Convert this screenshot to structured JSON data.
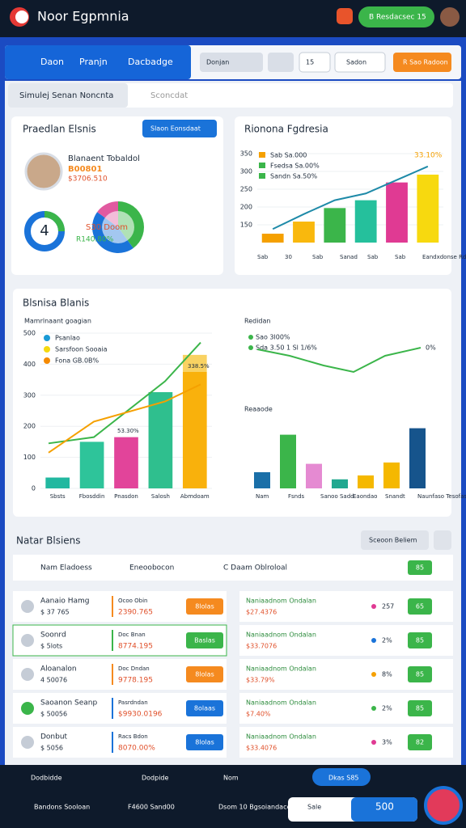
{
  "header": {
    "title": "Noor Egpmnia",
    "button": "B Resdacsec 15"
  },
  "nav": {
    "tabs": [
      "Daon",
      "Pranjn",
      "Dacbadge"
    ],
    "dropdowns": [
      "Donjan",
      "15",
      "Sadon"
    ],
    "action": "R Sao Radoon"
  },
  "search": {
    "tab": "Simulej Senan Noncnta",
    "placeholder": "Sconcdat"
  },
  "profile": {
    "title": "Praedlan Elsnis",
    "button": "Slaon Eonsdaat",
    "name": "Blanaent Tobaldol",
    "line1": "B00801",
    "line2": "$3706.510",
    "ring": "4",
    "donut_label": "S30 Doom",
    "donut_sub": "R140.80%",
    "segments": [
      40,
      45,
      15
    ],
    "colors": [
      "#3bb54a",
      "#1a73d9",
      "#e15aa0"
    ]
  },
  "revenue": {
    "title": "Rionona Fgdresia",
    "legend": [
      "Sab Sa.000",
      "Fsedsa Sa.00%",
      "Sandn Sa.50%"
    ],
    "legend_colors": [
      "#f5a000",
      "#3bb54a",
      "#3bb54a"
    ],
    "top_label": "33.10%",
    "ylim": [
      100,
      350
    ],
    "yticks": [
      150,
      200,
      250,
      300,
      350
    ],
    "bars": [
      125,
      159,
      197,
      219,
      269,
      291
    ],
    "bar_colors": [
      "#f5a000",
      "#f9b80d",
      "#3bb54a",
      "#25c09c",
      "#e03a93",
      "#f7d90f"
    ],
    "line": [
      138,
      180,
      219,
      238,
      276,
      314
    ],
    "line_color": "#1e8aa8",
    "xlabels": [
      "Sab",
      "30",
      "Sab",
      "Sanad",
      "Sab",
      "Sab",
      "Eandxdonse Rdmmotzi"
    ]
  },
  "business": {
    "title": "Blsnisa Blanis",
    "subtitle": "Mamrlnaant goagian",
    "legend": [
      "Psanlao",
      "Sarsfoon Sooaia",
      "Fona GB.0B%"
    ],
    "legend_colors": [
      "#1a9ad6",
      "#f5d90f",
      "#f58a00"
    ],
    "ylim": [
      0,
      500
    ],
    "yticks": [
      0,
      100,
      200,
      300,
      400,
      500
    ],
    "bars": [
      35,
      150,
      165,
      310,
      375
    ],
    "bar_colors": [
      "#22b8a0",
      "#2ec49a",
      "#e2449a",
      "#2fbf8e",
      "#f9b10c"
    ],
    "cap": 430,
    "cap_label": "338.5%",
    "pink_label": "53.30%",
    "line1": [
      145,
      165,
      345,
      470
    ],
    "line2": [
      115,
      215,
      280,
      335
    ],
    "xlabels": [
      "Sbsts",
      "Fbosddin",
      "Pnasdon",
      "Salosh",
      "Abmdoam"
    ],
    "right_title": "Redidan",
    "right_legend": [
      "Sao 3l00%",
      "Sda 3.50 1 Sl 1/6%"
    ],
    "right_end": "0%",
    "right_line": [
      70,
      50,
      20,
      0,
      50,
      75
    ],
    "right_ylim": [
      0,
      100
    ],
    "right_sub": "Reaaode",
    "right_bars": [
      25,
      83,
      38,
      14,
      20,
      40,
      93
    ],
    "right_bar_colors": [
      "#1a6fa8",
      "#3bb54a",
      "#e58ad2",
      "#21a890",
      "#f5b800",
      "#f5b800",
      "#16548c"
    ],
    "right_xlabels": [
      "Nam",
      "Fsnds",
      "Sanoo Sadd",
      "Eaondao",
      "Snandt",
      "Naunfaso Tesofasa"
    ]
  },
  "table": {
    "title": "Natar Blsiens",
    "button": "Sceoon Beliem",
    "header": [
      "Nam Eladoess",
      "Eneoobocon",
      "C Daam Oblroloal",
      "85"
    ],
    "rows": [
      [
        "Aanaio Hamg",
        "$ 37 765",
        "Ocoo Obin",
        "2390.765",
        "8lolas",
        "Naniaadnom Ondalan",
        "$27.4376",
        "257",
        "65"
      ],
      [
        "Soonrd",
        "$ 5lots",
        "Doc Bnan",
        "8774.195",
        "Baslas",
        "Naniaadnom Ondalan",
        "$33.7076",
        "2%",
        "85"
      ],
      [
        "Aloanalon",
        "4 50076",
        "Doc Dndan",
        "9778.195",
        "8lolas",
        "Naniaadnom Ondalan",
        "$33.79%",
        "8%",
        "85"
      ],
      [
        "Saoanon Seanp",
        "$ 50056",
        "Pasrdndan",
        "$9930.0196",
        "8olaas",
        "Naniaadnom Ondalan",
        "$7.40%",
        "2%",
        "85"
      ],
      [
        "Donbut",
        "$ 5056",
        "Racs Bdon",
        "8070.00%",
        "8lolas",
        "Naniaadnom Ondalan",
        "$33.4076",
        "3%",
        "82"
      ]
    ]
  },
  "footer": {
    "items": [
      "Dodbidde",
      "Dodpide",
      "Nom",
      "Dkas S85"
    ],
    "row2": [
      "Bandons Sooloan",
      "F4600 Sand00",
      "Dsom 10 Bgsoiandaces",
      "Sale",
      "500"
    ]
  }
}
